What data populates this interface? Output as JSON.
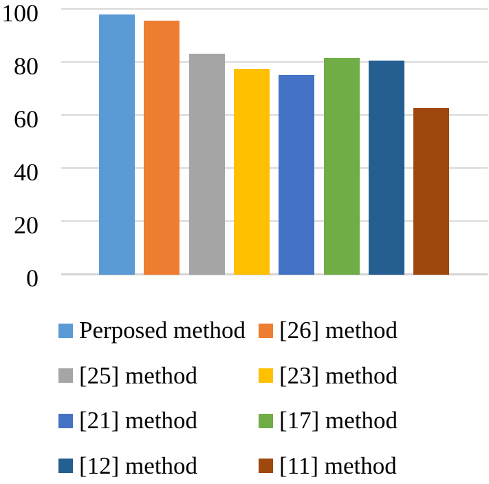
{
  "chart_data": {
    "type": "bar",
    "title": "",
    "xlabel": "",
    "ylabel": "",
    "ylim": [
      0,
      100
    ],
    "yticks": [
      0,
      20,
      40,
      60,
      80,
      100
    ],
    "grid": true,
    "legend_position": "bottom",
    "legend_columns": 2,
    "categories": [
      "Perposed method",
      "[26] method",
      "[25] method",
      "[23] method",
      "[21] method",
      "[17] method",
      "[12] method",
      "[11] method"
    ],
    "values": [
      98,
      95.5,
      83,
      77.5,
      75,
      81.5,
      80.5,
      62.5
    ],
    "colors": [
      "#5B9BD5",
      "#ED7D31",
      "#A5A5A5",
      "#FFC000",
      "#4472C4",
      "#70AD47",
      "#255E91",
      "#9E480E"
    ],
    "gridline_color": "#D9D9D9",
    "axis_line_color": "#D4D4D4",
    "text_color": "#000000"
  }
}
